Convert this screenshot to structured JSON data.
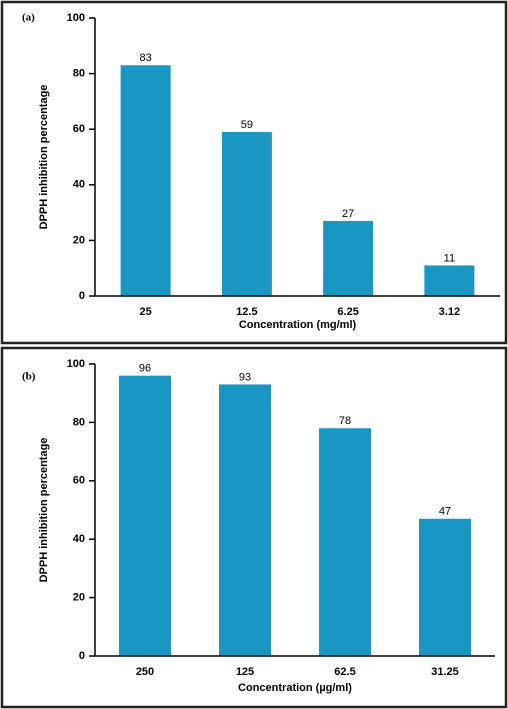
{
  "chart_data": [
    {
      "type": "bar",
      "panel_label": "(a)",
      "categories": [
        "25",
        "12.5",
        "6.25",
        "3.12"
      ],
      "values": [
        83,
        59,
        27,
        11
      ],
      "color": "#1a96c2",
      "x_label": "Concentration (mg/ml)",
      "y_label": "DPPH inhibition percentage",
      "ylim": [
        0,
        100
      ],
      "yticks": [
        0,
        20,
        40,
        60,
        80,
        100
      ]
    },
    {
      "type": "bar",
      "panel_label": "(b)",
      "categories": [
        "250",
        "125",
        "62.5",
        "31.25"
      ],
      "values": [
        96,
        93,
        78,
        47
      ],
      "color": "#1a96c2",
      "x_label": "Concentration (µg/ml)",
      "y_label": "DPPH inhibition percentage",
      "ylim": [
        0,
        100
      ],
      "yticks": [
        0,
        20,
        40,
        60,
        80,
        100
      ]
    }
  ]
}
